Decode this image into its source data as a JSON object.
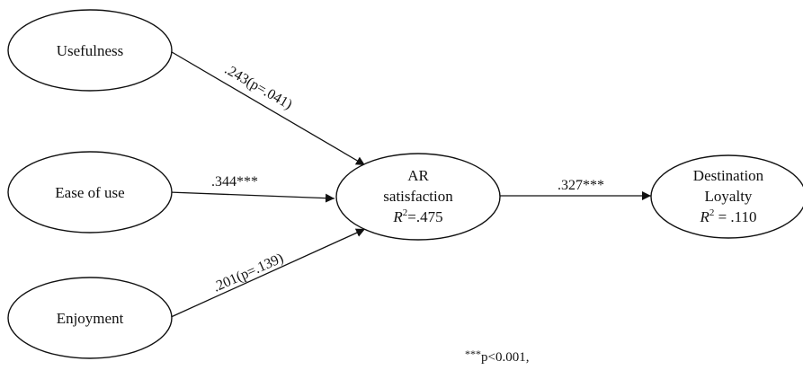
{
  "diagram": {
    "nodes": {
      "usefulness": {
        "label": "Usefulness"
      },
      "ease_of_use": {
        "label": "Ease of use"
      },
      "enjoyment": {
        "label": "Enjoyment"
      },
      "ar_satisfaction": {
        "line1": "AR",
        "line2": "satisfaction",
        "r2_symbol": "R",
        "r2_exponent": "2",
        "r2_value": "=.475"
      },
      "destination_loyalty": {
        "line1": "Destination",
        "line2": "Loyalty",
        "r2_symbol": "R",
        "r2_exponent": "2",
        "r2_value": " = .110"
      }
    },
    "edges": {
      "usefulness_to_ar": {
        "label": ".243(p=.041)"
      },
      "ease_to_ar": {
        "label": ".344***"
      },
      "enjoyment_to_ar": {
        "label": ".201(p=.139)"
      },
      "ar_to_loyalty": {
        "label": ".327***"
      }
    },
    "footnote": {
      "stars": "***",
      "text": "p<0.001,"
    }
  }
}
